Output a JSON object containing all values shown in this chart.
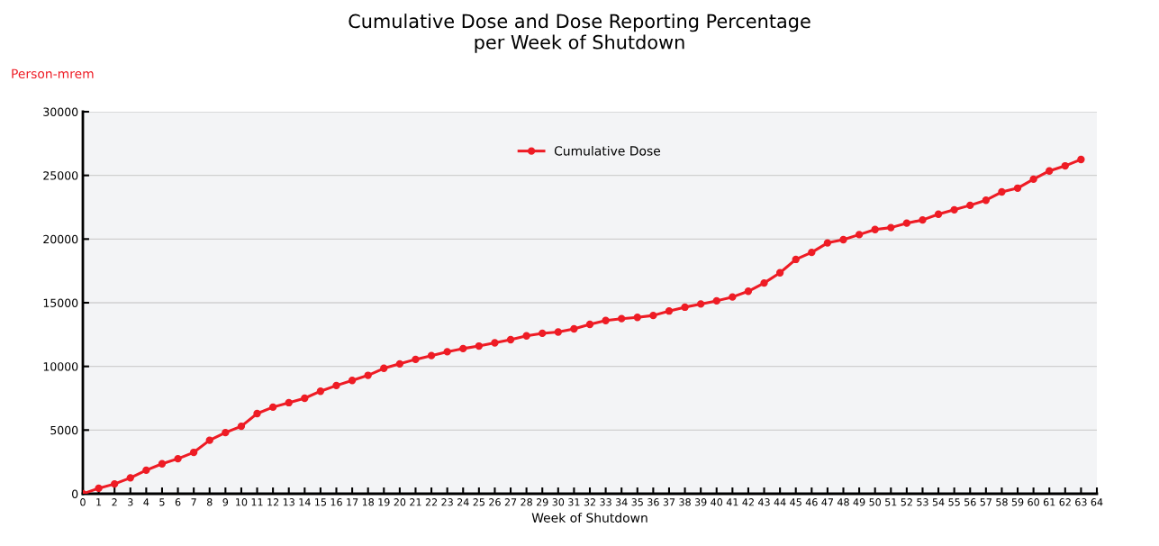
{
  "chart_data": {
    "type": "line",
    "title": "Cumulative Dose and Dose Reporting Percentage\nper Week of Shutdown",
    "xlabel": "Week of Shutdown",
    "ylabel": "Person-mrem",
    "x": [
      0,
      1,
      2,
      3,
      4,
      5,
      6,
      7,
      8,
      9,
      10,
      11,
      12,
      13,
      14,
      15,
      16,
      17,
      18,
      19,
      20,
      21,
      22,
      23,
      24,
      25,
      26,
      27,
      28,
      29,
      30,
      31,
      32,
      33,
      34,
      35,
      36,
      37,
      38,
      39,
      40,
      41,
      42,
      43,
      44,
      45,
      46,
      47,
      48,
      49,
      50,
      51,
      52,
      53,
      54,
      55,
      56,
      57,
      58,
      59,
      60,
      61,
      62,
      63
    ],
    "series": [
      {
        "name": "Cumulative Dose",
        "color": "#ee1c25",
        "values": [
          0,
          430,
          770,
          1250,
          1850,
          2350,
          2750,
          3250,
          4200,
          4800,
          5300,
          6300,
          6800,
          7150,
          7500,
          8050,
          8500,
          8900,
          9300,
          9850,
          10200,
          10550,
          10850,
          11150,
          11400,
          11600,
          11850,
          12100,
          12400,
          12600,
          12700,
          12950,
          13300,
          13600,
          13750,
          13850,
          14000,
          14350,
          14650,
          14900,
          15150,
          15450,
          15900,
          16550,
          17350,
          18400,
          18950,
          19700,
          19950,
          20350,
          20750,
          20900,
          21250,
          21500,
          21950,
          22300,
          22650,
          23050,
          23700,
          24000,
          24700,
          25350,
          25750,
          26250
        ]
      }
    ],
    "xlim": [
      0,
      64
    ],
    "xticks": [
      0,
      1,
      2,
      3,
      4,
      5,
      6,
      7,
      8,
      9,
      10,
      11,
      12,
      13,
      14,
      15,
      16,
      17,
      18,
      19,
      20,
      21,
      22,
      23,
      24,
      25,
      26,
      27,
      28,
      29,
      30,
      31,
      32,
      33,
      34,
      35,
      36,
      37,
      38,
      39,
      40,
      41,
      42,
      43,
      44,
      45,
      46,
      47,
      48,
      49,
      50,
      51,
      52,
      53,
      54,
      55,
      56,
      57,
      58,
      59,
      60,
      61,
      62,
      63,
      64
    ],
    "ylim": [
      0,
      30000
    ],
    "yticks": [
      0,
      5000,
      10000,
      15000,
      20000,
      25000,
      30000
    ],
    "grid": "y",
    "legend": "top",
    "marker": "circle",
    "line_style": "solid"
  }
}
